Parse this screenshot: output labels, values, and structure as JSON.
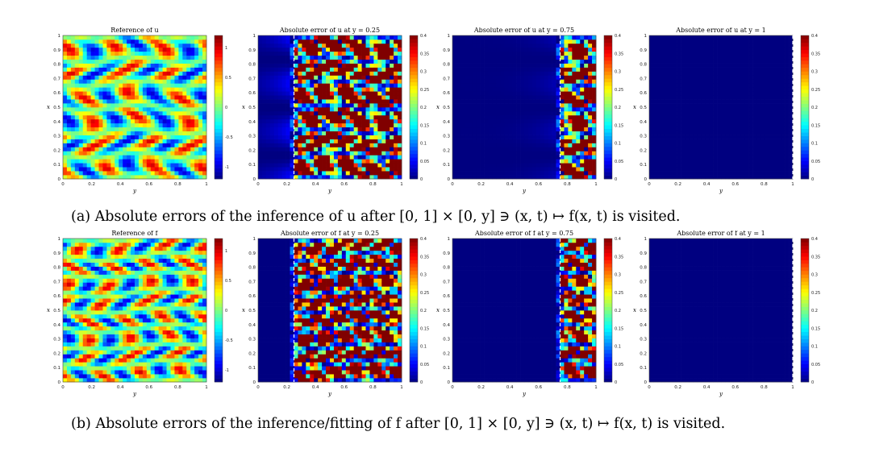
{
  "figure": {
    "rows": [
      {
        "id": "a",
        "caption_label": "(a)",
        "caption_text": "Absolute errors of the inference of u after [0, 1] × [0, y] ∋ (x, t) ↦ f(x, t) is visited.",
        "panels": [
          {
            "title": "Reference of u",
            "kind": "reference",
            "field": "u",
            "ytick_labels": [
              "0",
              "0.1",
              "0.2",
              "0.3",
              "0.4",
              "0.5",
              "0.6",
              "0.7",
              "0.8",
              "0.9",
              "1"
            ],
            "xtick_labels": [
              "0",
              "0.2",
              "0.4",
              "0.6",
              "0.8",
              "1"
            ],
            "xlabel": "y",
            "ylabel": "x",
            "colorbar": {
              "range": [
                -1.2,
                1.2
              ],
              "tick_labels": [
                "1",
                "0.5",
                "0",
                "-0.5",
                "-1"
              ],
              "tick_values": [
                1,
                0.5,
                0,
                -0.5,
                -1
              ]
            }
          },
          {
            "title": "Absolute error of u at y = 0.25",
            "kind": "error",
            "field": "u",
            "cut": 0.25,
            "ytick_labels": [
              "0",
              "0.1",
              "0.2",
              "0.3",
              "0.4",
              "0.5",
              "0.6",
              "0.7",
              "0.8",
              "0.9",
              "1"
            ],
            "xtick_labels": [
              "0",
              "0.2",
              "0.4",
              "0.6",
              "0.8",
              "1"
            ],
            "xlabel": "y",
            "ylabel": "x",
            "colorbar": {
              "range": [
                0,
                0.4
              ],
              "tick_labels": [
                "0.4",
                "0.35",
                "0.3",
                "0.25",
                "0.2",
                "0.15",
                "0.1",
                "0.05",
                "0"
              ],
              "tick_values": [
                0.4,
                0.35,
                0.3,
                0.25,
                0.2,
                0.15,
                0.1,
                0.05,
                0
              ]
            }
          },
          {
            "title": "Absolute error of u at y = 0.75",
            "kind": "error",
            "field": "u",
            "cut": 0.75,
            "ytick_labels": [
              "0",
              "0.1",
              "0.2",
              "0.3",
              "0.4",
              "0.5",
              "0.6",
              "0.7",
              "0.8",
              "0.9",
              "1"
            ],
            "xtick_labels": [
              "0",
              "0.2",
              "0.4",
              "0.6",
              "0.8",
              "1"
            ],
            "xlabel": "y",
            "ylabel": "x",
            "colorbar": {
              "range": [
                0,
                0.4
              ],
              "tick_labels": [
                "0.4",
                "0.35",
                "0.3",
                "0.25",
                "0.2",
                "0.15",
                "0.1",
                "0.05",
                "0"
              ],
              "tick_values": [
                0.4,
                0.35,
                0.3,
                0.25,
                0.2,
                0.15,
                0.1,
                0.05,
                0
              ]
            }
          },
          {
            "title": "Absolute error of u at y = 1",
            "kind": "error",
            "field": "u",
            "cut": 1,
            "ytick_labels": [
              "0",
              "0.1",
              "0.2",
              "0.3",
              "0.4",
              "0.5",
              "0.6",
              "0.7",
              "0.8",
              "0.9",
              "1"
            ],
            "xtick_labels": [
              "0",
              "0.2",
              "0.4",
              "0.6",
              "0.8",
              "1"
            ],
            "xlabel": "y",
            "ylabel": "x",
            "colorbar": {
              "range": [
                0,
                0.4
              ],
              "tick_labels": [
                "0.4",
                "0.35",
                "0.3",
                "0.25",
                "0.2",
                "0.15",
                "0.1",
                "0.05",
                "0"
              ],
              "tick_values": [
                0.4,
                0.35,
                0.3,
                0.25,
                0.2,
                0.15,
                0.1,
                0.05,
                0
              ]
            }
          }
        ]
      },
      {
        "id": "b",
        "caption_label": "(b)",
        "caption_text": "Absolute errors of the inference/fitting of f after [0, 1] × [0, y] ∋ (x, t) ↦ f(x, t) is visited.",
        "panels": [
          {
            "title": "Reference of f",
            "kind": "reference",
            "field": "f",
            "ytick_labels": [
              "0",
              "0.1",
              "0.2",
              "0.3",
              "0.4",
              "0.5",
              "0.6",
              "0.7",
              "0.8",
              "0.9",
              "1"
            ],
            "xtick_labels": [
              "0",
              "0.2",
              "0.4",
              "0.6",
              "0.8",
              "1"
            ],
            "xlabel": "y",
            "ylabel": "x",
            "colorbar": {
              "range": [
                -1.2,
                1.2
              ],
              "tick_labels": [
                "1",
                "0.5",
                "0",
                "-0.5",
                "-1"
              ],
              "tick_values": [
                1,
                0.5,
                0,
                -0.5,
                -1
              ]
            }
          },
          {
            "title": "Absolute error of f at y = 0.25",
            "kind": "error",
            "field": "f",
            "cut": 0.25,
            "ytick_labels": [
              "0",
              "0.1",
              "0.2",
              "0.3",
              "0.4",
              "0.5",
              "0.6",
              "0.7",
              "0.8",
              "0.9",
              "1"
            ],
            "xtick_labels": [
              "0",
              "0.2",
              "0.4",
              "0.6",
              "0.8",
              "1"
            ],
            "xlabel": "y",
            "ylabel": "x",
            "colorbar": {
              "range": [
                0,
                0.4
              ],
              "tick_labels": [
                "0.4",
                "0.35",
                "0.3",
                "0.25",
                "0.2",
                "0.15",
                "0.1",
                "0.05",
                "0"
              ],
              "tick_values": [
                0.4,
                0.35,
                0.3,
                0.25,
                0.2,
                0.15,
                0.1,
                0.05,
                0
              ]
            }
          },
          {
            "title": "Absolute error of f at y = 0.75",
            "kind": "error",
            "field": "f",
            "cut": 0.75,
            "ytick_labels": [
              "0",
              "0.1",
              "0.2",
              "0.3",
              "0.4",
              "0.5",
              "0.6",
              "0.7",
              "0.8",
              "0.9",
              "1"
            ],
            "xtick_labels": [
              "0",
              "0.2",
              "0.4",
              "0.6",
              "0.8",
              "1"
            ],
            "xlabel": "y",
            "ylabel": "x",
            "colorbar": {
              "range": [
                0,
                0.4
              ],
              "tick_labels": [
                "0.4",
                "0.35",
                "0.3",
                "0.25",
                "0.2",
                "0.15",
                "0.1",
                "0.05",
                "0"
              ],
              "tick_values": [
                0.4,
                0.35,
                0.3,
                0.25,
                0.2,
                0.15,
                0.1,
                0.05,
                0
              ]
            }
          },
          {
            "title": "Absolute error of f at y = 1",
            "kind": "error",
            "field": "f",
            "cut": 1,
            "ytick_labels": [
              "0",
              "0.1",
              "0.2",
              "0.3",
              "0.4",
              "0.5",
              "0.6",
              "0.7",
              "0.8",
              "0.9",
              "1"
            ],
            "xtick_labels": [
              "0",
              "0.2",
              "0.4",
              "0.6",
              "0.8",
              "1"
            ],
            "xlabel": "y",
            "ylabel": "x",
            "colorbar": {
              "range": [
                0,
                0.4
              ],
              "tick_labels": [
                "0.4",
                "0.35",
                "0.3",
                "0.25",
                "0.2",
                "0.15",
                "0.1",
                "0.05",
                "0"
              ],
              "tick_values": [
                0.4,
                0.35,
                0.3,
                0.25,
                0.2,
                0.15,
                0.1,
                0.05,
                0
              ]
            }
          }
        ]
      }
    ],
    "colors": {
      "cut_line": "#ffffff",
      "background": "#ffffff",
      "colormap": "jet"
    }
  },
  "chart_data": [
    {
      "type": "heatmap",
      "title": "Reference of u",
      "xlabel": "y",
      "ylabel": "x",
      "xlim": [
        0,
        1
      ],
      "ylim": [
        0,
        1
      ],
      "clim": [
        -1.2,
        1.2
      ]
    },
    {
      "type": "heatmap",
      "title": "Absolute error of u at y = 0.25",
      "xlabel": "y",
      "ylabel": "x",
      "xlim": [
        0,
        1
      ],
      "ylim": [
        0,
        1
      ],
      "clim": [
        0,
        0.4
      ],
      "cut_line_at": 0.25
    },
    {
      "type": "heatmap",
      "title": "Absolute error of u at y = 0.75",
      "xlabel": "y",
      "ylabel": "x",
      "xlim": [
        0,
        1
      ],
      "ylim": [
        0,
        1
      ],
      "clim": [
        0,
        0.4
      ],
      "cut_line_at": 0.75
    },
    {
      "type": "heatmap",
      "title": "Absolute error of u at y = 1",
      "xlabel": "y",
      "ylabel": "x",
      "xlim": [
        0,
        1
      ],
      "ylim": [
        0,
        1
      ],
      "clim": [
        0,
        0.4
      ],
      "cut_line_at": 1
    },
    {
      "type": "heatmap",
      "title": "Reference of f",
      "xlabel": "y",
      "ylabel": "x",
      "xlim": [
        0,
        1
      ],
      "ylim": [
        0,
        1
      ],
      "clim": [
        -1.2,
        1.2
      ]
    },
    {
      "type": "heatmap",
      "title": "Absolute error of f at y = 0.25",
      "xlabel": "y",
      "ylabel": "x",
      "xlim": [
        0,
        1
      ],
      "ylim": [
        0,
        1
      ],
      "clim": [
        0,
        0.4
      ],
      "cut_line_at": 0.25
    },
    {
      "type": "heatmap",
      "title": "Absolute error of f at y = 0.75",
      "xlabel": "y",
      "ylabel": "x",
      "xlim": [
        0,
        1
      ],
      "ylim": [
        0,
        1
      ],
      "clim": [
        0,
        0.4
      ],
      "cut_line_at": 0.75
    },
    {
      "type": "heatmap",
      "title": "Absolute error of f at y = 1",
      "xlabel": "y",
      "ylabel": "x",
      "xlim": [
        0,
        1
      ],
      "ylim": [
        0,
        1
      ],
      "clim": [
        0,
        0.4
      ],
      "cut_line_at": 1
    }
  ]
}
